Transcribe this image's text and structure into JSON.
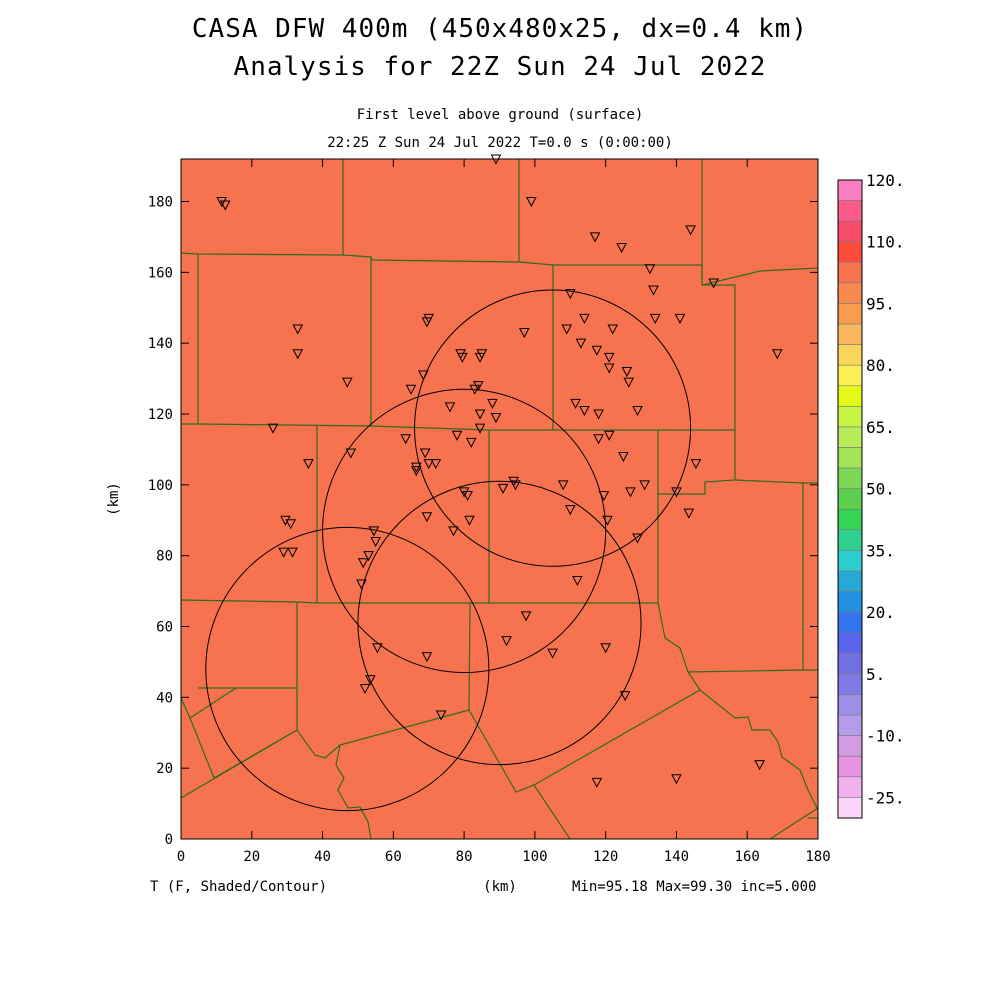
{
  "title_line1": "CASA DFW 400m (450x480x25, dx=0.4 km)",
  "title_line2": "Analysis for 22Z Sun 24 Jul 2022",
  "subtitle_line1": "First level above ground (surface)",
  "subtitle_line2": "22:25 Z Sun 24 Jul 2022   T=0.0 s (0:00:00)",
  "field_label": "T (F, Shaded/Contour)",
  "stats_label": "Min=95.18 Max=99.30 inc=5.000",
  "colors": {
    "field_fill": "#f7734f",
    "county_lines": "#2f6b1e",
    "circles": "#000000"
  },
  "chart_data": {
    "type": "heatmap",
    "xlabel": "(km)",
    "ylabel": "(km)",
    "xlim": [
      0,
      180
    ],
    "ylim": [
      0,
      192
    ],
    "x_ticks": [
      0,
      20,
      40,
      60,
      80,
      100,
      120,
      140,
      160,
      180
    ],
    "y_ticks": [
      0,
      20,
      40,
      60,
      80,
      100,
      120,
      140,
      160,
      180
    ],
    "field_min": 95.18,
    "field_max": 99.3,
    "contour_increment": 5.0,
    "colorbar": {
      "labels": [
        "120.",
        "110.",
        "95.",
        "80.",
        "65.",
        "50.",
        "35.",
        "20.",
        "5.",
        "-10.",
        "-25."
      ],
      "colors": [
        "#fb7dc1",
        "#fb5a8a",
        "#f94c6a",
        "#fb4b3a",
        "#f7734f",
        "#f8894e",
        "#f89e4e",
        "#f8ba5c",
        "#fbd55a",
        "#fbee57",
        "#e5fa18",
        "#c8f446",
        "#b7ec5a",
        "#a2e458",
        "#7ed855",
        "#5ccf4f",
        "#35d456",
        "#30d190",
        "#2ecdcd",
        "#29a8d8",
        "#2490e0",
        "#3474ee",
        "#5865ec",
        "#7070e0",
        "#7f7ae6",
        "#9d8ee8",
        "#b59be9",
        "#d29ce3",
        "#e693e0",
        "#efb0ee",
        "#fbd6f9"
      ]
    },
    "radar_rings": [
      {
        "cx": 105,
        "cy": 116,
        "r": 39
      },
      {
        "cx": 80,
        "cy": 87,
        "r": 40
      },
      {
        "cx": 90,
        "cy": 61,
        "r": 40
      },
      {
        "cx": 47,
        "cy": 48,
        "r": 40
      }
    ],
    "stations": [
      [
        11.5,
        180
      ],
      [
        12.5,
        179
      ],
      [
        89,
        192
      ],
      [
        99,
        180
      ],
      [
        117,
        170
      ],
      [
        124.5,
        167
      ],
      [
        144,
        172
      ],
      [
        132.5,
        161
      ],
      [
        150.5,
        157
      ],
      [
        133.5,
        155
      ],
      [
        110,
        154
      ],
      [
        33,
        144
      ],
      [
        70,
        147
      ],
      [
        69.5,
        146
      ],
      [
        114,
        147
      ],
      [
        134,
        147
      ],
      [
        141,
        147
      ],
      [
        97,
        143
      ],
      [
        109,
        144
      ],
      [
        122,
        144
      ],
      [
        33,
        137
      ],
      [
        79,
        137
      ],
      [
        79.5,
        136
      ],
      [
        85,
        137
      ],
      [
        84.5,
        136
      ],
      [
        113,
        140
      ],
      [
        117.5,
        138
      ],
      [
        121,
        136
      ],
      [
        121,
        133
      ],
      [
        126,
        132
      ],
      [
        168.5,
        137
      ],
      [
        47,
        129
      ],
      [
        68.5,
        131
      ],
      [
        84,
        128
      ],
      [
        83,
        127
      ],
      [
        65,
        127
      ],
      [
        126.5,
        129
      ],
      [
        88,
        123
      ],
      [
        76,
        122
      ],
      [
        89,
        119
      ],
      [
        84.5,
        120
      ],
      [
        111.5,
        123
      ],
      [
        114,
        121
      ],
      [
        118,
        120
      ],
      [
        129,
        121
      ],
      [
        26,
        116
      ],
      [
        84.5,
        116
      ],
      [
        78,
        114
      ],
      [
        63.5,
        113
      ],
      [
        82,
        112
      ],
      [
        118,
        113
      ],
      [
        121,
        114
      ],
      [
        69,
        109
      ],
      [
        48,
        109
      ],
      [
        125,
        108
      ],
      [
        145.5,
        106
      ],
      [
        36,
        106
      ],
      [
        66.5,
        105
      ],
      [
        66.5,
        104
      ],
      [
        70,
        106
      ],
      [
        72,
        106
      ],
      [
        94,
        101
      ],
      [
        94.5,
        100
      ],
      [
        108,
        100
      ],
      [
        131,
        100
      ],
      [
        80,
        98
      ],
      [
        81,
        97
      ],
      [
        91,
        99
      ],
      [
        119.5,
        97
      ],
      [
        127,
        98
      ],
      [
        140,
        98
      ],
      [
        110,
        93
      ],
      [
        143.5,
        92
      ],
      [
        69.5,
        91
      ],
      [
        81.5,
        90
      ],
      [
        120.5,
        90
      ],
      [
        29.5,
        90
      ],
      [
        31,
        89
      ],
      [
        77,
        87
      ],
      [
        129,
        85
      ],
      [
        54.5,
        87
      ],
      [
        55,
        84
      ],
      [
        53,
        80
      ],
      [
        51.5,
        78
      ],
      [
        29,
        81
      ],
      [
        31.5,
        81
      ],
      [
        51,
        72
      ],
      [
        112,
        73
      ],
      [
        97.5,
        63
      ],
      [
        92,
        56
      ],
      [
        55.5,
        54
      ],
      [
        69.5,
        51.5
      ],
      [
        105,
        52.5
      ],
      [
        120,
        54
      ],
      [
        53.5,
        45
      ],
      [
        52,
        42.5
      ],
      [
        125.5,
        40.5
      ],
      [
        73.5,
        35
      ],
      [
        163.5,
        21
      ],
      [
        140,
        17
      ],
      [
        117.5,
        16
      ]
    ]
  }
}
